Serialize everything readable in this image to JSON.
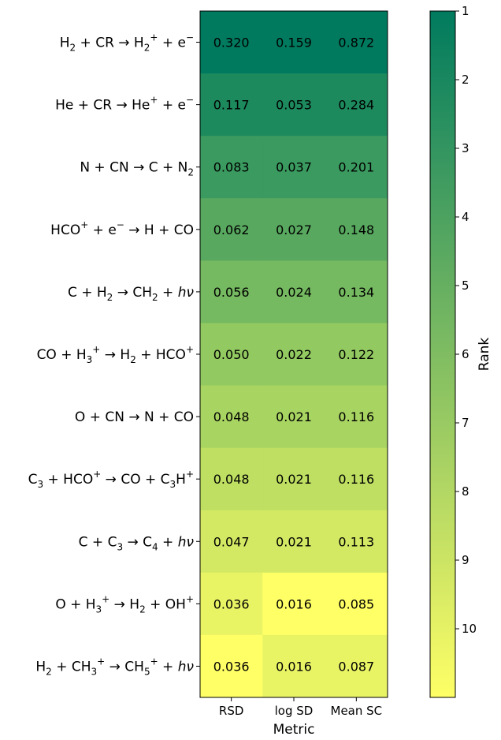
{
  "chart_data": {
    "type": "heatmap",
    "columns": [
      "RSD",
      "log SD",
      "Mean SC"
    ],
    "xlabel": "Metric",
    "colorbar_label": "Rank",
    "colorbar_ticks": [
      "1",
      "2",
      "3",
      "4",
      "5",
      "6",
      "7",
      "8",
      "9",
      "10"
    ],
    "colorbar_range": [
      1,
      11
    ],
    "colormap": [
      "#ffff66",
      "#007a5e"
    ],
    "rows": [
      {
        "label": [
          [
            "H",
            "n"
          ],
          [
            "2",
            "sub"
          ],
          [
            " + CR → H",
            "n"
          ],
          [
            "2",
            "sub"
          ],
          [
            "+",
            "sup"
          ],
          [
            " + e",
            "n"
          ],
          [
            "−",
            "sup"
          ]
        ],
        "values": [
          "0.320",
          "0.159",
          "0.872"
        ],
        "ranks": [
          1,
          1,
          1
        ]
      },
      {
        "label": [
          [
            "He + CR → He",
            "n"
          ],
          [
            "+",
            "sup"
          ],
          [
            " + e",
            "n"
          ],
          [
            "−",
            "sup"
          ]
        ],
        "values": [
          "0.117",
          "0.053",
          "0.284"
        ],
        "ranks": [
          2,
          2,
          2
        ]
      },
      {
        "label": [
          [
            "N + CN → C + N",
            "n"
          ],
          [
            "2",
            "sub"
          ]
        ],
        "values": [
          "0.083",
          "0.037",
          "0.201"
        ],
        "ranks": [
          3,
          3,
          3
        ]
      },
      {
        "label": [
          [
            "HCO",
            "n"
          ],
          [
            "+",
            "sup"
          ],
          [
            " + e",
            "n"
          ],
          [
            "−",
            "sup"
          ],
          [
            " → H + CO",
            "n"
          ]
        ],
        "values": [
          "0.062",
          "0.027",
          "0.148"
        ],
        "ranks": [
          4,
          4,
          4
        ]
      },
      {
        "label": [
          [
            "C + H",
            "n"
          ],
          [
            "2",
            "sub"
          ],
          [
            " → CH",
            "n"
          ],
          [
            "2",
            "sub"
          ],
          [
            " + ",
            "n"
          ],
          [
            "hν",
            "it"
          ]
        ],
        "values": [
          "0.056",
          "0.024",
          "0.134"
        ],
        "ranks": [
          5,
          5,
          5
        ]
      },
      {
        "label": [
          [
            "CO + H",
            "n"
          ],
          [
            "3",
            "sub"
          ],
          [
            "+",
            "sup"
          ],
          [
            " → H",
            "n"
          ],
          [
            "2",
            "sub"
          ],
          [
            " + HCO",
            "n"
          ],
          [
            "+",
            "sup"
          ]
        ],
        "values": [
          "0.050",
          "0.022",
          "0.122"
        ],
        "ranks": [
          6,
          6,
          6
        ]
      },
      {
        "label": [
          [
            "O + CN → N + CO",
            "n"
          ]
        ],
        "values": [
          "0.048",
          "0.021",
          "0.116"
        ],
        "ranks": [
          7,
          7,
          7
        ]
      },
      {
        "label": [
          [
            "C",
            "n"
          ],
          [
            "3",
            "sub"
          ],
          [
            " + HCO",
            "n"
          ],
          [
            "+",
            "sup"
          ],
          [
            " → CO + C",
            "n"
          ],
          [
            "3",
            "sub"
          ],
          [
            "H",
            "n"
          ],
          [
            "+",
            "sup"
          ]
        ],
        "values": [
          "0.048",
          "0.021",
          "0.116"
        ],
        "ranks": [
          8,
          8,
          8
        ]
      },
      {
        "label": [
          [
            "C + C",
            "n"
          ],
          [
            "3",
            "sub"
          ],
          [
            " → C",
            "n"
          ],
          [
            "4",
            "sub"
          ],
          [
            " + ",
            "n"
          ],
          [
            "hν",
            "it"
          ]
        ],
        "values": [
          "0.047",
          "0.021",
          "0.113"
        ],
        "ranks": [
          9,
          9,
          9
        ]
      },
      {
        "label": [
          [
            "O + H",
            "n"
          ],
          [
            "3",
            "sub"
          ],
          [
            "+",
            "sup"
          ],
          [
            " → H",
            "n"
          ],
          [
            "2",
            "sub"
          ],
          [
            " + OH",
            "n"
          ],
          [
            "+",
            "sup"
          ]
        ],
        "values": [
          "0.036",
          "0.016",
          "0.085"
        ],
        "ranks": [
          10,
          11,
          11
        ]
      },
      {
        "label": [
          [
            "H",
            "n"
          ],
          [
            "2",
            "sub"
          ],
          [
            " + CH",
            "n"
          ],
          [
            "3",
            "sub"
          ],
          [
            "+",
            "sup"
          ],
          [
            " → CH",
            "n"
          ],
          [
            "5",
            "sub"
          ],
          [
            "+",
            "sup"
          ],
          [
            " + ",
            "n"
          ],
          [
            "hν",
            "it"
          ]
        ],
        "values": [
          "0.036",
          "0.016",
          "0.087"
        ],
        "ranks": [
          11,
          10,
          10
        ]
      }
    ]
  }
}
